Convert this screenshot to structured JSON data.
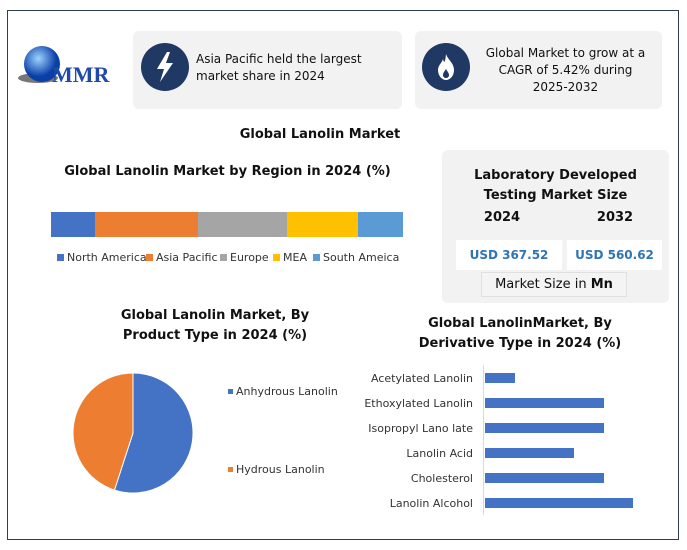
{
  "logo": {
    "text": "MMR"
  },
  "cards": [
    {
      "icon": "lightning-icon",
      "text": "Asia Pacific held the largest market share in 2024"
    },
    {
      "icon": "flame-icon",
      "text": "Global Market to grow at a CAGR of 5.42% during 2025-2032"
    }
  ],
  "main_title": "Global Lanolin Market",
  "size_panel": {
    "title": "Laboratory Developed Testing Market Size",
    "year1": "2024",
    "year2": "2032",
    "value1": "USD 367.52",
    "value2": "USD 560.62",
    "unit_prefix": "Market Size in ",
    "unit_bold": "Mn"
  },
  "colors": {
    "blue": "#4472c4",
    "orange": "#ed7d31",
    "gray": "#a5a5a5",
    "yellow": "#ffc000",
    "lightblue": "#5b9bd5",
    "navy": "#1f3864"
  },
  "chart_data": [
    {
      "type": "bar",
      "stacked": true,
      "title": "Global Lanolin Market by Region in 2024 (%)",
      "categories": [
        "North America",
        "Asia Pacific",
        "Europe",
        "MEA",
        "South Ameica"
      ],
      "values": [
        12.5,
        29.3,
        25.3,
        20.2,
        12.7
      ],
      "legend": "bottom"
    },
    {
      "type": "pie",
      "title": "Global Lanolin Market, By Product Type in 2024 (%)",
      "categories": [
        "Anhydrous Lanolin",
        "Hydrous Lanolin"
      ],
      "values": [
        55,
        45
      ],
      "legend": "right"
    },
    {
      "type": "bar",
      "orientation": "horizontal",
      "title": "Global LanolinMarket, By Derivative Type in 2024 (%)",
      "categories": [
        "Acetylated Lanolin",
        "Ethoxylated Lanolin",
        "Isopropyl Lano late",
        "Lanolin Acid",
        "Cholesterol",
        "Lanolin Alcohol"
      ],
      "values": [
        1,
        4,
        4,
        3,
        4,
        5
      ],
      "xlim": [
        0,
        6
      ]
    }
  ]
}
